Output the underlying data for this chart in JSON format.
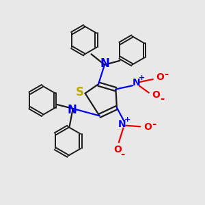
{
  "background_color": "#e8e8e8",
  "bond_color": "#1a1a1a",
  "n_color": "#0000ee",
  "s_color": "#bbaa00",
  "o_color": "#ee0000",
  "plus_color": "#0000ee",
  "minus_color": "#ee0000",
  "figsize": [
    3.0,
    3.0
  ],
  "dpi": 100,
  "xlim": [
    0,
    10
  ],
  "ylim": [
    0,
    10
  ]
}
